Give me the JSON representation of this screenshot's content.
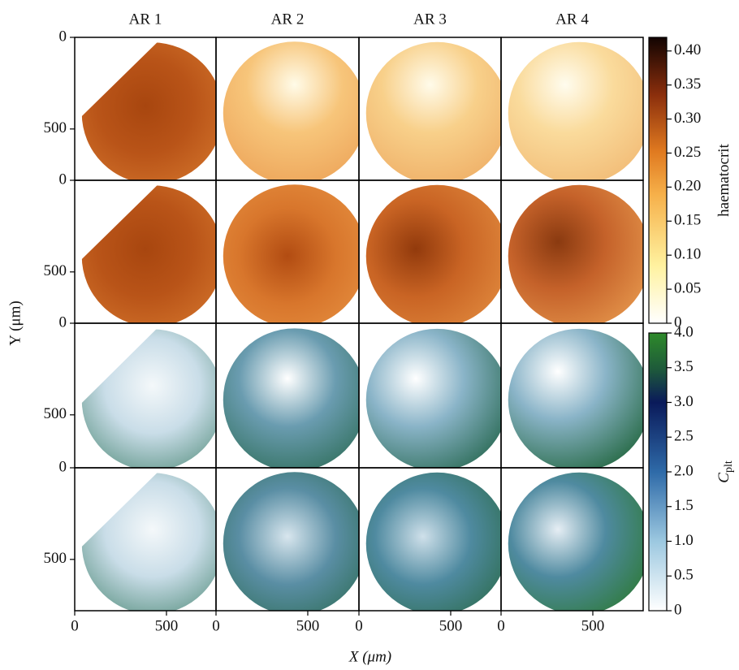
{
  "chart_data": {
    "type": "heatmap",
    "columns": [
      "AR 1",
      "AR 2",
      "AR 3",
      "AR 4"
    ],
    "xlabel": "X (μm)",
    "ylabel": "Y (μm)",
    "xlim": [
      0,
      770
    ],
    "ylim": [
      0,
      780
    ],
    "y_inverted": true,
    "xticks": [
      0,
      500
    ],
    "yticks": [
      0,
      500
    ],
    "colorbars": [
      {
        "label": "haematocrit",
        "lim": [
          0,
          0.42
        ],
        "ticks": [
          0,
          0.05,
          {
            "value": 0.1,
            "label": "0.10"
          },
          0.15,
          {
            "value": 0.2,
            "label": "0.20"
          },
          0.25,
          {
            "value": 0.3,
            "label": "0.30"
          },
          0.35,
          {
            "value": 0.4,
            "label": "0.40"
          }
        ]
      },
      {
        "label": "C",
        "label_sub": "plt",
        "lim": [
          0,
          4
        ],
        "ticks": [
          0,
          0.5,
          {
            "value": 1,
            "label": "1.0"
          },
          1.5,
          {
            "value": 2,
            "label": "2.0"
          },
          2.5,
          {
            "value": 3,
            "label": "3.0"
          },
          3.5,
          {
            "value": 4,
            "label": "4.0"
          }
        ]
      }
    ]
  }
}
